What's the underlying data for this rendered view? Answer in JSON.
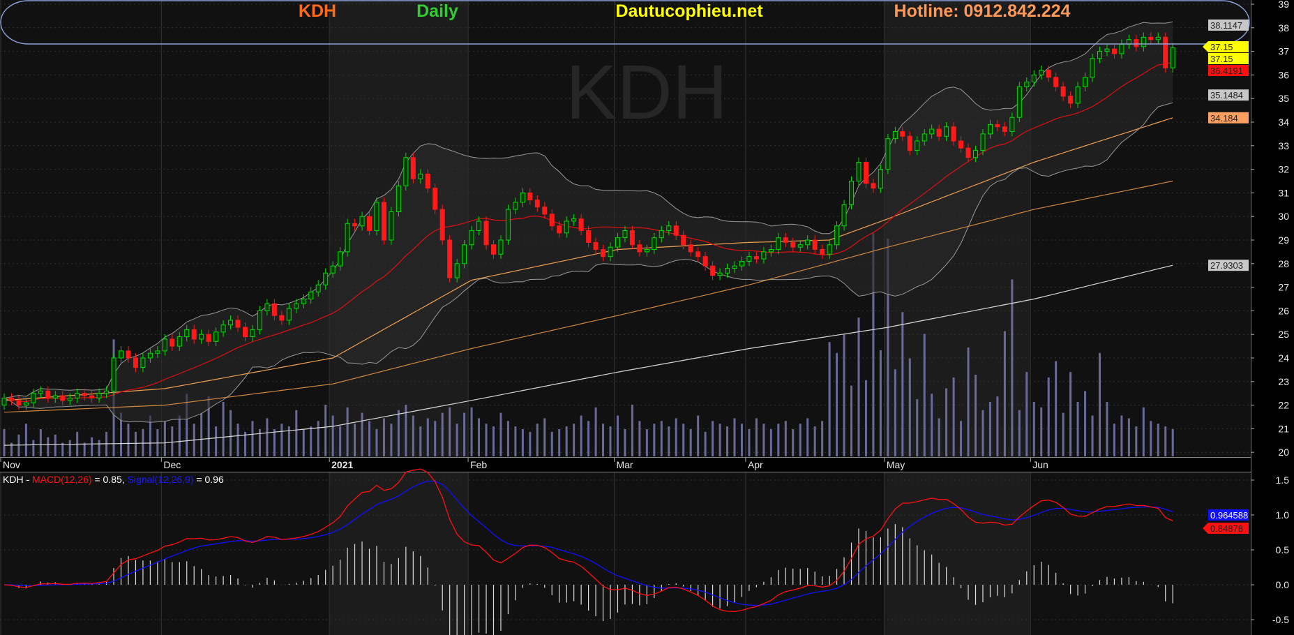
{
  "header": {
    "symbol": "KDH",
    "period": "Daily",
    "site": "Dautucophieu.net",
    "hotline": "Hotline: 0912.842.224",
    "watermark": "KDH"
  },
  "colors": {
    "up": "#00dd00",
    "down": "#ff1a1a",
    "ma20": "#e01010",
    "ma50": "#f0a050",
    "ma100": "#d08840",
    "ma200": "#d8d8d8",
    "macd": "#ff1010",
    "signal": "#1010ff",
    "volume": "#6a6a9a"
  },
  "chart_data": {
    "type": "candlestick",
    "title": "KDH Daily",
    "months": [
      {
        "label": "Nov",
        "index": 0
      },
      {
        "label": "Dec",
        "index": 22
      },
      {
        "label": "2021",
        "index": 45
      },
      {
        "label": "Feb",
        "index": 64
      },
      {
        "label": "Mar",
        "index": 84
      },
      {
        "label": "Apr",
        "index": 102
      },
      {
        "label": "May",
        "index": 121
      },
      {
        "label": "Jun",
        "index": 141
      }
    ],
    "ylim": [
      19.7,
      39.2
    ],
    "yticks": [
      20,
      21,
      22,
      23,
      24,
      25,
      26,
      27,
      28,
      29,
      30,
      31,
      32,
      33,
      34,
      35,
      36,
      37,
      38,
      39
    ],
    "first_open": 22.0,
    "close": [
      22.3,
      22.2,
      22.0,
      22.1,
      22.5,
      22.6,
      22.3,
      22.4,
      22.2,
      22.3,
      22.5,
      22.4,
      22.3,
      22.5,
      22.6,
      24.0,
      24.3,
      24.0,
      23.6,
      24.0,
      24.2,
      24.3,
      24.8,
      24.5,
      24.9,
      25.2,
      24.8,
      25.0,
      24.7,
      25.1,
      25.4,
      25.6,
      25.3,
      24.9,
      25.2,
      26.0,
      26.3,
      25.8,
      25.6,
      26.1,
      26.3,
      26.5,
      26.8,
      27.1,
      27.6,
      27.9,
      28.5,
      29.7,
      29.6,
      30.0,
      29.4,
      30.6,
      29.0,
      30.2,
      31.3,
      32.5,
      31.6,
      31.8,
      31.2,
      30.3,
      29.0,
      27.4,
      28.0,
      28.8,
      29.4,
      29.8,
      28.8,
      28.4,
      29.0,
      30.3,
      30.6,
      31.0,
      30.7,
      30.4,
      30.1,
      29.6,
      29.3,
      29.8,
      29.9,
      29.4,
      28.9,
      28.6,
      28.3,
      28.7,
      29.1,
      29.4,
      28.8,
      28.5,
      28.6,
      29.1,
      29.4,
      29.6,
      29.2,
      28.8,
      28.5,
      28.3,
      27.9,
      27.5,
      27.6,
      27.8,
      27.9,
      28.1,
      28.3,
      28.2,
      28.5,
      28.6,
      29.1,
      28.9,
      28.7,
      28.8,
      29.0,
      28.6,
      28.4,
      28.8,
      29.6,
      30.5,
      31.5,
      32.3,
      31.4,
      31.2,
      32.0,
      33.3,
      33.6,
      33.4,
      32.8,
      33.2,
      33.5,
      33.7,
      33.4,
      33.8,
      33.2,
      32.9,
      32.5,
      32.8,
      33.5,
      33.9,
      33.8,
      33.6,
      34.2,
      35.5,
      35.7,
      36.0,
      36.2,
      35.9,
      35.5,
      35.1,
      34.8,
      35.5,
      35.9,
      36.7,
      37.0,
      37.1,
      36.9,
      37.3,
      37.5,
      37.2,
      37.6,
      37.5,
      37.6,
      36.3,
      37.15
    ],
    "volume": [
      1.0,
      0.5,
      0.8,
      1.2,
      0.6,
      1.0,
      0.7,
      0.8,
      0.5,
      0.6,
      0.9,
      0.5,
      0.7,
      0.6,
      0.9,
      4.3,
      1.6,
      1.2,
      0.9,
      1.0,
      1.5,
      1.0,
      1.3,
      1.1,
      1.5,
      2.3,
      1.2,
      1.6,
      2.2,
      1.1,
      2.0,
      1.7,
      1.2,
      0.9,
      1.3,
      1.0,
      1.4,
      1.0,
      1.2,
      1.1,
      1.7,
      1.0,
      1.1,
      1.3,
      1.9,
      1.5,
      1.1,
      1.8,
      1.2,
      1.6,
      1.3,
      1.0,
      1.4,
      1.2,
      1.7,
      1.9,
      1.5,
      1.1,
      1.4,
      1.3,
      1.6,
      1.8,
      1.2,
      1.6,
      1.8,
      1.4,
      1.2,
      1.1,
      1.6,
      1.3,
      1.1,
      1.0,
      0.9,
      1.2,
      1.4,
      0.9,
      1.0,
      1.1,
      1.2,
      1.5,
      1.3,
      1.8,
      1.2,
      1.1,
      1.5,
      1.0,
      1.9,
      1.3,
      1.0,
      1.2,
      1.3,
      1.1,
      1.4,
      1.2,
      1.0,
      1.5,
      0.9,
      1.3,
      1.2,
      1.1,
      1.4,
      1.2,
      1.0,
      1.4,
      1.2,
      1.0,
      1.2,
      1.3,
      1.0,
      1.2,
      1.4,
      1.1,
      1.3,
      4.2,
      3.8,
      4.5,
      2.6,
      5.1,
      2.8,
      8.2,
      3.9,
      8.0,
      3.2,
      5.3,
      3.6,
      2.1,
      4.5,
      2.3,
      1.4,
      2.5,
      2.9,
      1.3,
      4.0,
      3.0,
      1.7,
      2.0,
      2.2,
      4.6,
      6.5,
      1.7,
      3.1,
      2.0,
      1.8,
      2.9,
      3.5,
      1.6,
      3.1,
      2.0,
      2.4,
      1.5,
      3.8,
      2.0,
      1.2,
      1.5,
      1.4,
      1.1,
      1.8,
      1.3,
      1.2,
      1.1,
      1.0
    ],
    "ma50_points": [
      [
        0,
        22.2
      ],
      [
        22,
        22.7
      ],
      [
        45,
        24.0
      ],
      [
        64,
        27.3
      ],
      [
        84,
        28.6
      ],
      [
        102,
        28.9
      ],
      [
        113,
        29.0
      ],
      [
        121,
        29.9
      ],
      [
        141,
        32.3
      ],
      [
        160,
        34.184
      ]
    ],
    "ma100_points": [
      [
        0,
        21.7
      ],
      [
        22,
        22.0
      ],
      [
        45,
        22.9
      ],
      [
        64,
        24.4
      ],
      [
        84,
        25.8
      ],
      [
        102,
        27.1
      ],
      [
        121,
        28.7
      ],
      [
        141,
        30.3
      ],
      [
        160,
        31.5
      ]
    ],
    "ma200_points": [
      [
        0,
        20.3
      ],
      [
        22,
        20.4
      ],
      [
        45,
        21.1
      ],
      [
        64,
        22.2
      ],
      [
        84,
        23.4
      ],
      [
        102,
        24.4
      ],
      [
        121,
        25.3
      ],
      [
        141,
        26.5
      ],
      [
        160,
        27.9303
      ]
    ],
    "price_labels": {
      "bb_upper": "38.1147",
      "close_1": "37.15",
      "close_2": "37.15",
      "ma20": "36.4191",
      "bb_lower": "35.1484",
      "ma50": "34.184",
      "ma200": "27.9303"
    },
    "macd": {
      "legend_symbol": "KDH - ",
      "legend_macd": "MACD(12,26)",
      "legend_macd_val": " = 0.85, ",
      "legend_signal": "Signal(12,26,9)",
      "legend_signal_val": " = 0.96",
      "ylim": [
        -0.6,
        1.6
      ],
      "yticks": [
        "1.5",
        "1.0",
        "0.5",
        "0.0",
        "-0.5"
      ],
      "signal_label": "0.964588",
      "macd_label": "0.84878"
    }
  }
}
